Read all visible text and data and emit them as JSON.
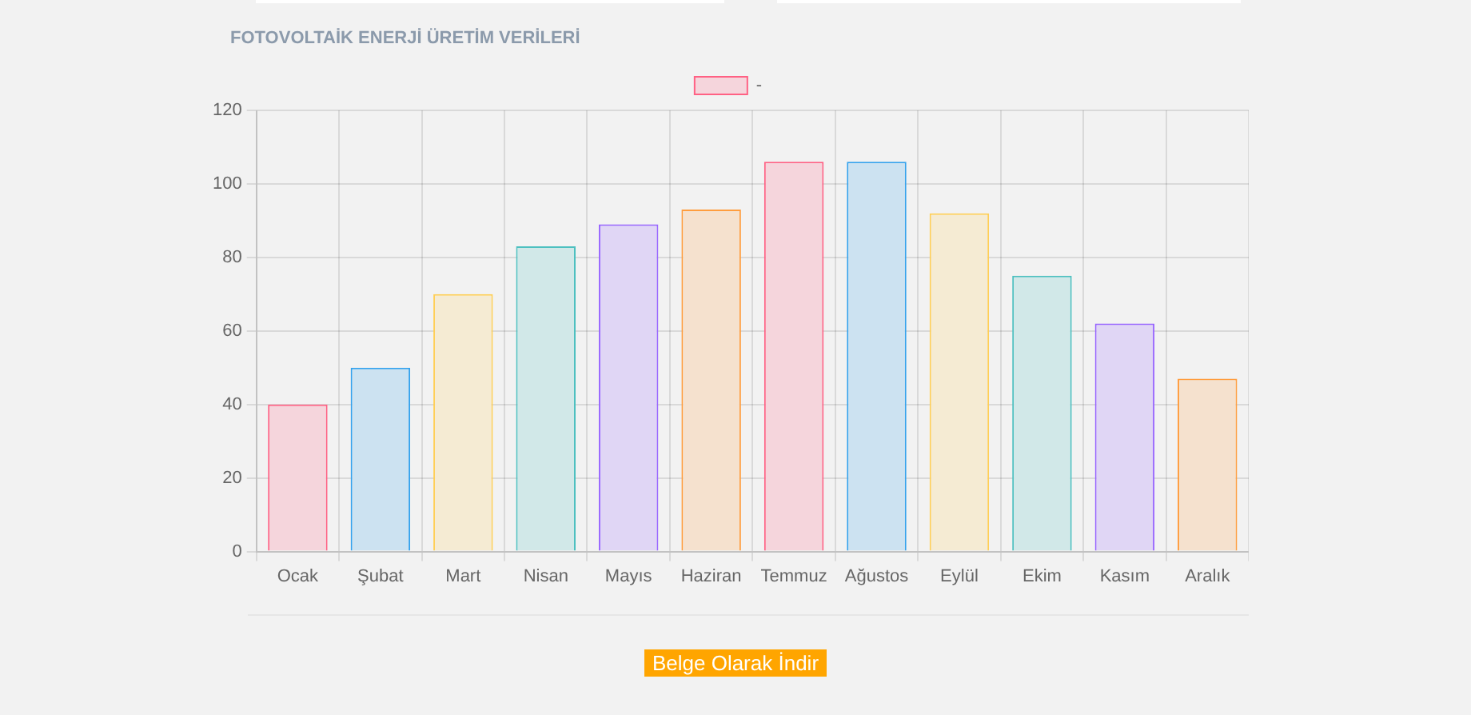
{
  "chart_data": {
    "type": "bar",
    "title": "FOTOVOLTAİK ENERJİ ÜRETİM VERİLERİ",
    "categories": [
      "Ocak",
      "Şubat",
      "Mart",
      "Nisan",
      "Mayıs",
      "Haziran",
      "Temmuz",
      "Ağustos",
      "Eylül",
      "Ekim",
      "Kasım",
      "Aralık"
    ],
    "series": [
      {
        "name": "-",
        "values": [
          40,
          50,
          70,
          83,
          89,
          93,
          106,
          106,
          92,
          75,
          62,
          47
        ],
        "colors": [
          "#f5d5dc",
          "#cce2f1",
          "#f5ebd3",
          "#d1e8e8",
          "#e0d6f5",
          "#f5e1ce",
          "#f5d5dc",
          "#cce2f1",
          "#f5ebd3",
          "#d1e8e8",
          "#e0d6f5",
          "#f5e1ce"
        ]
      }
    ],
    "ylim": [
      0,
      120
    ],
    "yticks": [
      0,
      20,
      40,
      60,
      80,
      100,
      120
    ],
    "grid": true,
    "legend": "top",
    "annotations": [
      "Belge Olarak İndir"
    ]
  }
}
